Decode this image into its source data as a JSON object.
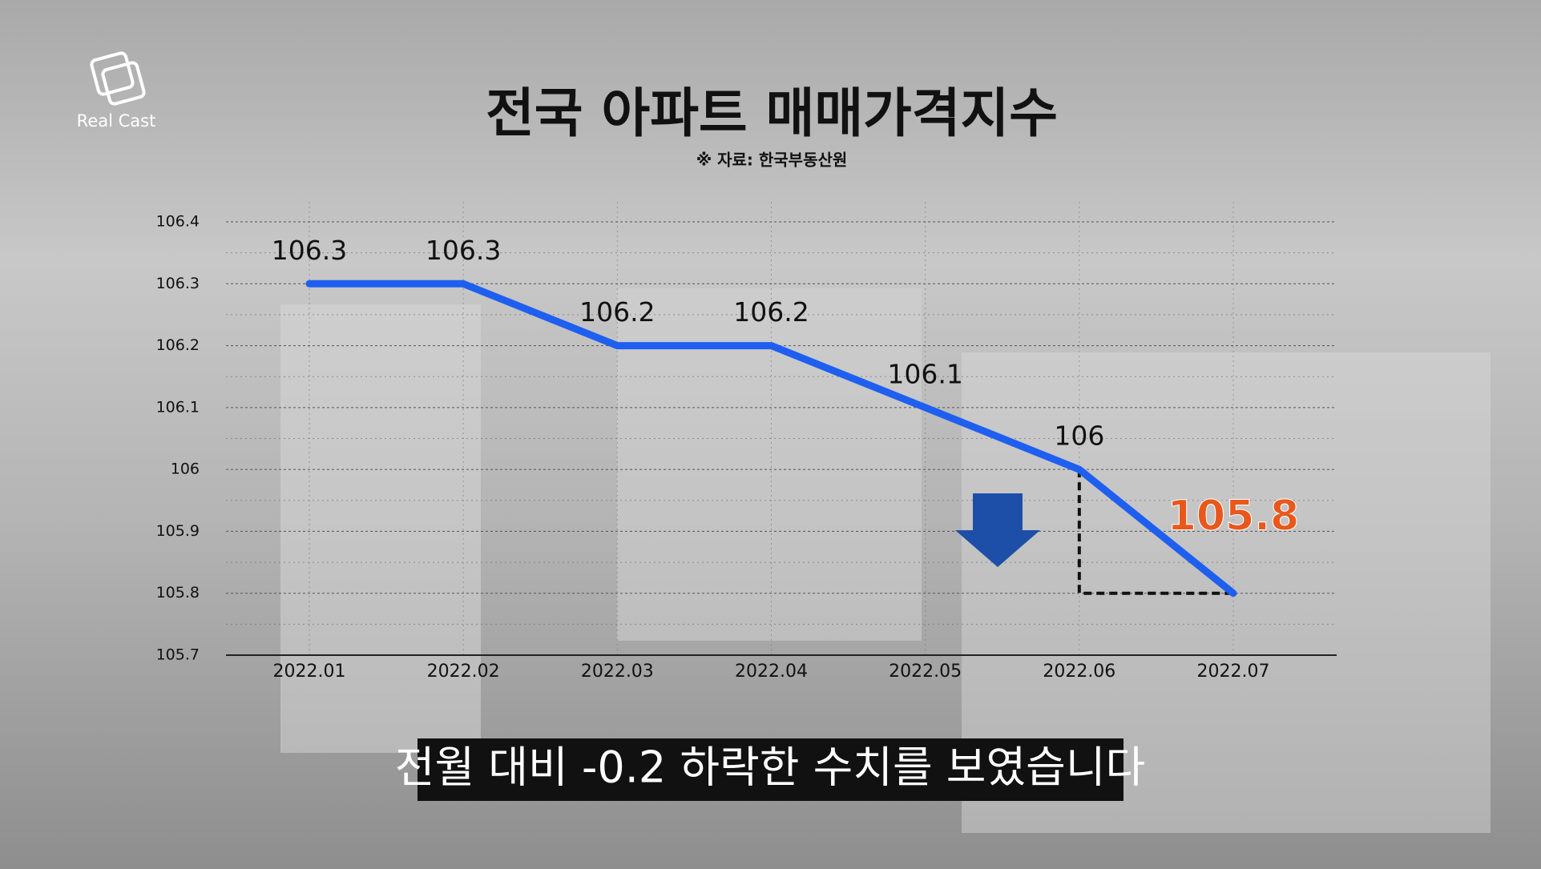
{
  "logo": "Real Cast",
  "chart_data": {
    "type": "line",
    "title": "전국 아파트 매매가격지수",
    "subtitle": "※ 자료: 한국부동산원",
    "categories": [
      "2022.01",
      "2022.02",
      "2022.03",
      "2022.04",
      "2022.05",
      "2022.06",
      "2022.07"
    ],
    "series": [
      {
        "name": "전국 아파트 매매가격지수",
        "color": "#1f5ff0",
        "values": [
          106.3,
          106.3,
          106.2,
          106.2,
          106.1,
          106,
          105.8
        ]
      }
    ],
    "highlight_color": "#e8581c",
    "ylim": [
      105.7,
      106.4
    ],
    "yticks": [
      105.7,
      105.8,
      105.9,
      106,
      106.1,
      106.2,
      106.3,
      106.4
    ],
    "grid": true,
    "caption": "전월 대비 -0.2 하락한 수치를 보였습니다"
  }
}
